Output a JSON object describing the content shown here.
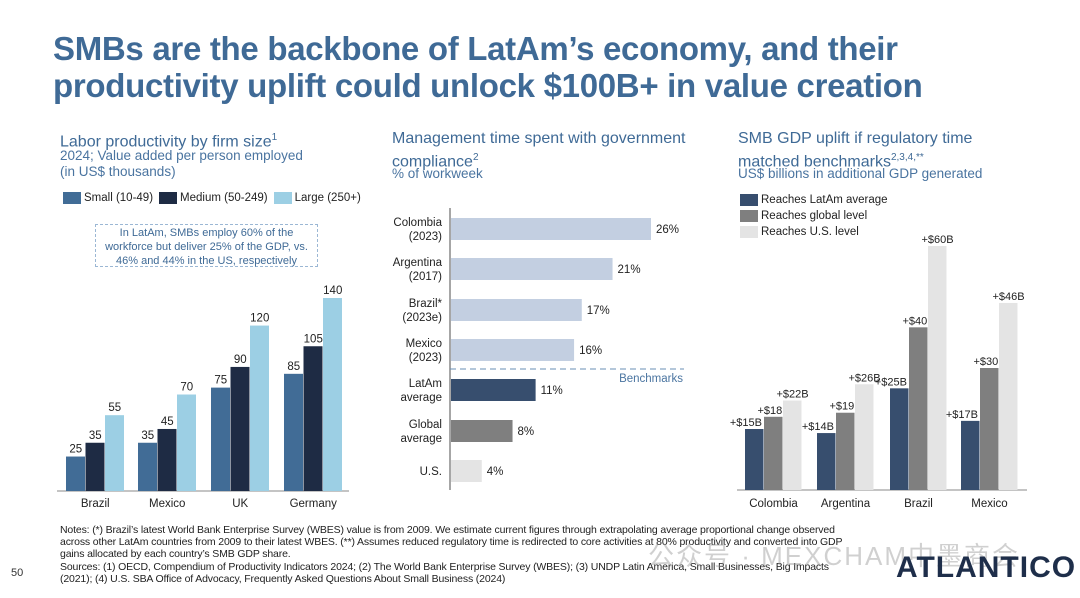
{
  "page": {
    "title": "SMBs are the backbone of LatAm’s economy, and their productivity uplift could unlock $100B+ in value creation",
    "page_number": "50",
    "logo": "ATLANTICO",
    "watermark": "公众号 · MEXCHAM中墨商会",
    "notes": [
      "Notes: (*) Brazil’s latest World Bank Enterprise Survey (WBES) value is from 2009. We estimate current figures through extrapolating average proportional change observed across other LatAm countries from 2009 to their latest WBES. (**) Assumes reduced regulatory time is redirected to core activities at 80% productivity and converted into GDP gains allocated by each country’s SMB GDP share.",
      "Sources: (1) OECD, Compendium of Productivity Indicators 2024; (2) The World Bank Enterprise Survey (WBES); (3) UNDP Latin America, Small Businesses, Big Impacts (2021); (4) U.S. SBA Office of Advocacy, Frequently Asked Questions About Small Business (2024)"
    ]
  },
  "chart_data": [
    {
      "type": "bar",
      "title": "Labor productivity by firm size",
      "title_footnote": "1",
      "subtitle_line1": "2024; Value added per person employed",
      "subtitle_line2": "(in US$ thousands)",
      "callout": "In LatAm, SMBs employ 60% of the workforce but deliver 25% of the GDP, vs. 46% and 44% in the US, respectively",
      "categories": [
        "Brazil",
        "Mexico",
        "UK",
        "Germany"
      ],
      "series": [
        {
          "name": "Small (10-49)",
          "color": "#416c96",
          "values": [
            25,
            35,
            75,
            85
          ]
        },
        {
          "name": "Medium (50-249)",
          "color": "#1e2b44",
          "values": [
            35,
            45,
            90,
            105
          ]
        },
        {
          "name": "Large (250+)",
          "color": "#9ccfe4",
          "values": [
            55,
            70,
            120,
            140
          ]
        }
      ],
      "xlabel": "",
      "ylabel": "",
      "ylim": [
        0,
        140
      ],
      "grid": false,
      "legend": "top"
    },
    {
      "type": "bar",
      "orientation": "horizontal",
      "title_line1": "Management time spent with government",
      "title_line2": "compliance",
      "title_footnote": "2",
      "subtitle": "% of workweek",
      "categories": [
        [
          "Colombia",
          "(2023)"
        ],
        [
          "Argentina",
          "(2017)"
        ],
        [
          "Brazil*",
          "(2023e)"
        ],
        [
          "Mexico",
          "(2023)"
        ],
        [
          "LatAm",
          "average"
        ],
        [
          "Global",
          "average"
        ],
        [
          "U.S."
        ]
      ],
      "values": [
        26,
        21,
        17,
        16,
        11,
        8,
        4
      ],
      "value_labels": [
        "26%",
        "21%",
        "17%",
        "16%",
        "11%",
        "8%",
        "4%"
      ],
      "colors": [
        "#c3cfe1",
        "#c3cfe1",
        "#c3cfe1",
        "#c3cfe1",
        "#374e6e",
        "#7f7f7f",
        "#e4e4e4"
      ],
      "annotation": "Benchmarks",
      "xlim": [
        0,
        26
      ],
      "grid": false
    },
    {
      "type": "bar",
      "title_line1": "SMB GDP uplift if regulatory time",
      "title_line2": "matched benchmarks",
      "title_footnote": "2,3,4,**",
      "subtitle": "US$ billions in additional GDP generated",
      "categories": [
        "Colombia",
        "Argentina",
        "Brazil",
        "Mexico"
      ],
      "series": [
        {
          "name": "Reaches LatAm average",
          "color": "#374e6e",
          "values": [
            15,
            14,
            25,
            17
          ],
          "labels": [
            "+$15B",
            "+$14B",
            "+$25B",
            "+$17B"
          ]
        },
        {
          "name": "Reaches global level",
          "color": "#7f7f7f",
          "values": [
            18,
            19,
            40,
            30
          ],
          "labels": [
            "+$18B",
            "+$19B",
            "+$40B",
            "+$30B"
          ]
        },
        {
          "name": "Reaches U.S. level",
          "color": "#e4e4e4",
          "values": [
            22,
            26,
            60,
            46
          ],
          "labels": [
            "+$22B",
            "+$26B",
            "+$60B",
            "+$46B"
          ]
        }
      ],
      "ylim": [
        0,
        60
      ],
      "grid": false,
      "legend": "top-left"
    }
  ]
}
